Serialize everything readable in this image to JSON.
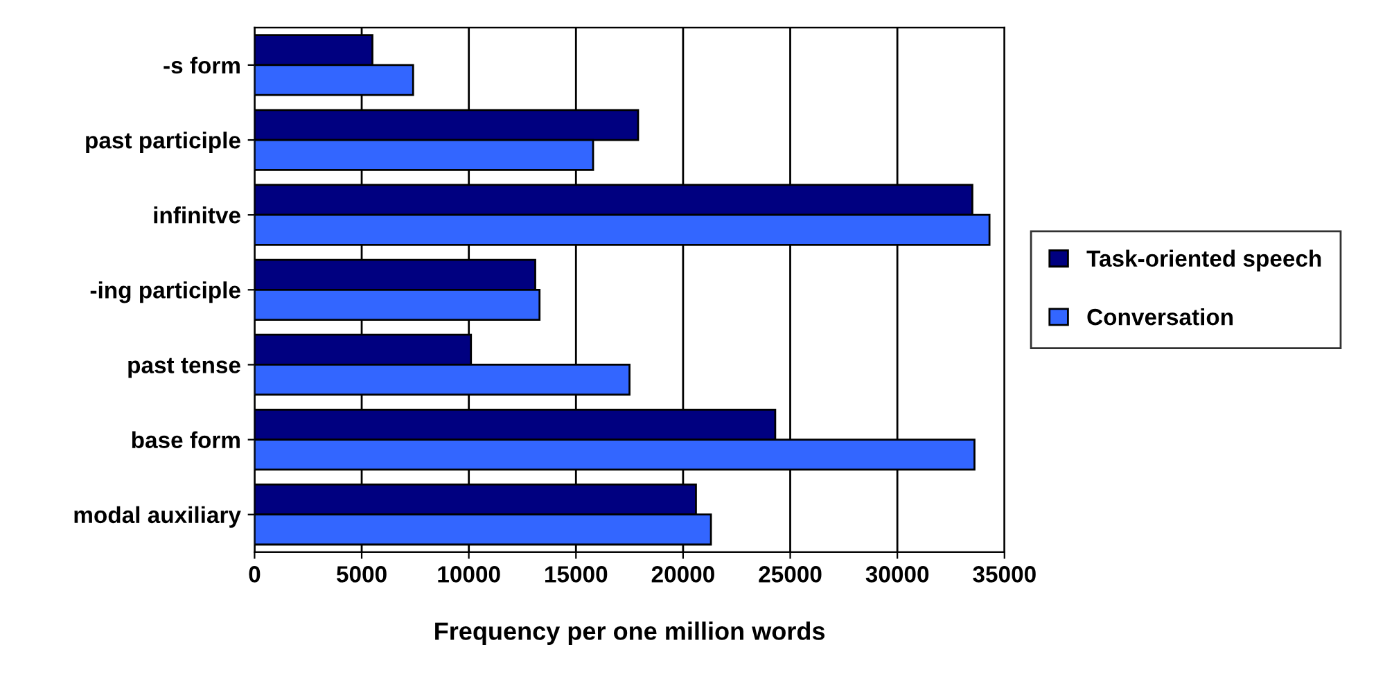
{
  "chart_data": {
    "type": "bar",
    "orientation": "horizontal",
    "xlabel": "Frequency per one million words",
    "categories": [
      "-s form",
      "past participle",
      "infinitve",
      "-ing participle",
      "past tense",
      "base form",
      "modal auxiliary"
    ],
    "series": [
      {
        "name": "Task-oriented speech",
        "color": "#000080",
        "values": [
          5500,
          17900,
          33500,
          13100,
          10100,
          24300,
          20600
        ]
      },
      {
        "name": "Conversation",
        "color": "#3366ff",
        "values": [
          7400,
          15800,
          34300,
          13300,
          17500,
          33600,
          21300
        ]
      }
    ],
    "xlim": [
      0,
      35000
    ],
    "xticks": [
      0,
      5000,
      10000,
      15000,
      20000,
      25000,
      30000,
      35000
    ],
    "grid": "x",
    "legend": "right"
  }
}
